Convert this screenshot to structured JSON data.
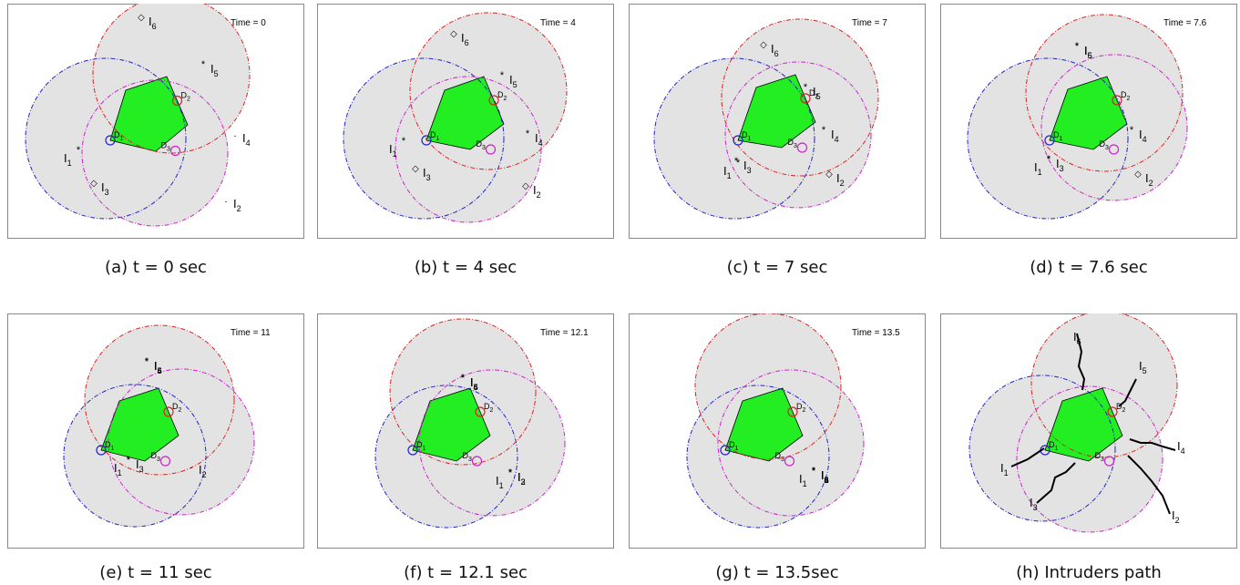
{
  "colors": {
    "drone1": "#2222cc",
    "drone2": "#dd2222",
    "drone3": "#cc22cc",
    "area_fill": "#e3e3e3",
    "target": "#22ee22",
    "path": "#000000"
  },
  "labels": {
    "time_prefix": "Time =",
    "drone_prefix": "D",
    "intruder_prefix": "I"
  },
  "panels": [
    {
      "caption": "(a) t = 0 sec",
      "time": "0",
      "drones": [
        {
          "id": "1",
          "x": 108,
          "y": 148,
          "r": 88
        },
        {
          "id": "2",
          "x": 180,
          "y": 78,
          "r": 86
        },
        {
          "id": "3",
          "x": 162,
          "y": 164,
          "r": 80
        }
      ],
      "intruders": [
        {
          "id": "1",
          "x": 78,
          "y": 164,
          "marker": "*",
          "color": "drone1"
        },
        {
          "id": "2",
          "x": 240,
          "y": 218,
          "marker": ".",
          "color": "path"
        },
        {
          "id": "3",
          "x": 95,
          "y": 200,
          "marker": "◇",
          "color": "drone3"
        },
        {
          "id": "4",
          "x": 250,
          "y": 146,
          "marker": ".",
          "color": "path"
        },
        {
          "id": "5",
          "x": 215,
          "y": 70,
          "marker": "*",
          "color": "drone2"
        },
        {
          "id": "6",
          "x": 147,
          "y": 18,
          "marker": "◇",
          "color": "drone2"
        }
      ]
    },
    {
      "caption": "(b) t = 4 sec",
      "time": "4",
      "drones": [
        {
          "id": "1",
          "x": 117,
          "y": 148,
          "r": 88
        },
        {
          "id": "2",
          "x": 188,
          "y": 96,
          "r": 86
        },
        {
          "id": "3",
          "x": 166,
          "y": 160,
          "r": 80
        }
      ],
      "intruders": [
        {
          "id": "1",
          "x": 95,
          "y": 154,
          "marker": "*",
          "color": "drone1"
        },
        {
          "id": "2",
          "x": 229,
          "y": 203,
          "marker": "◇",
          "color": "drone3"
        },
        {
          "id": "3",
          "x": 108,
          "y": 184,
          "marker": "◇",
          "color": "drone1"
        },
        {
          "id": "4",
          "x": 231,
          "y": 146,
          "marker": "*",
          "color": "drone3"
        },
        {
          "id": "5",
          "x": 203,
          "y": 82,
          "marker": "*",
          "color": "drone2"
        },
        {
          "id": "6",
          "x": 150,
          "y": 36,
          "marker": "◇",
          "color": "drone2"
        }
      ]
    },
    {
      "caption": "(c) t = 7 sec",
      "time": "7",
      "drones": [
        {
          "id": "1",
          "x": 116,
          "y": 148,
          "r": 88
        },
        {
          "id": "2",
          "x": 188,
          "y": 103,
          "r": 86
        },
        {
          "id": "3",
          "x": 186,
          "y": 144,
          "r": 80
        }
      ],
      "intruders": [
        {
          "id": "1",
          "x": 120,
          "y": 178,
          "marker": "*",
          "color": "drone1"
        },
        {
          "id": "2",
          "x": 220,
          "y": 190,
          "marker": "◇",
          "color": "drone3"
        },
        {
          "id": "3",
          "x": 118,
          "y": 176,
          "marker": "*",
          "color": "drone1"
        },
        {
          "id": "4",
          "x": 214,
          "y": 142,
          "marker": "*",
          "color": "drone3"
        },
        {
          "id": "5",
          "x": 194,
          "y": 95,
          "marker": "*",
          "color": "drone2"
        },
        {
          "id": "6",
          "x": 148,
          "y": 48,
          "marker": "◇",
          "color": "drone2"
        }
      ]
    },
    {
      "caption": "(d) t = 7.6 sec",
      "time": "7.6",
      "drones": [
        {
          "id": "1",
          "x": 118,
          "y": 148,
          "r": 88
        },
        {
          "id": "2",
          "x": 180,
          "y": 98,
          "r": 86
        },
        {
          "id": "3",
          "x": 191,
          "y": 136,
          "r": 80
        }
      ],
      "intruders": [
        {
          "id": "1",
          "x": 119,
          "y": 174,
          "marker": "*",
          "color": "drone1"
        },
        {
          "id": "2",
          "x": 217,
          "y": 190,
          "marker": "◇",
          "color": "drone3"
        },
        {
          "id": "3",
          "x": 119,
          "y": 174,
          "marker": "*",
          "color": "drone1"
        },
        {
          "id": "4",
          "x": 210,
          "y": 142,
          "marker": "*",
          "color": "drone3"
        },
        {
          "id": "5",
          "x": 150,
          "y": 50,
          "marker": "*",
          "color": "drone2"
        },
        {
          "id": "6",
          "x": 150,
          "y": 50,
          "marker": "*",
          "color": "drone2"
        }
      ]
    },
    {
      "caption": "(e) t = 11 sec",
      "time": "11",
      "drones": [
        {
          "id": "1",
          "x": 140,
          "y": 156,
          "r": 78
        },
        {
          "id": "2",
          "x": 167,
          "y": 95,
          "r": 82
        },
        {
          "id": "3",
          "x": 191,
          "y": 141,
          "r": 80
        }
      ],
      "intruders": [
        {
          "id": "1",
          "x": 133,
          "y": 164,
          "marker": "*",
          "color": "drone1"
        },
        {
          "id": "2",
          "x": 202,
          "y": 170,
          "marker": ".",
          "color": "drone3"
        },
        {
          "id": "3",
          "x": 133,
          "y": 164,
          "marker": "*",
          "color": "drone1"
        },
        {
          "id": "4",
          "x": 153,
          "y": 56,
          "marker": "*",
          "color": "drone3"
        },
        {
          "id": "5",
          "x": 153,
          "y": 56,
          "marker": "*",
          "color": "drone2"
        },
        {
          "id": "6",
          "x": 153,
          "y": 56,
          "marker": "*",
          "color": "drone2"
        }
      ]
    },
    {
      "caption": "(f) t = 12.1 sec",
      "time": "12.1",
      "drones": [
        {
          "id": "1",
          "x": 142,
          "y": 157,
          "r": 78
        },
        {
          "id": "2",
          "x": 160,
          "y": 86,
          "r": 80
        },
        {
          "id": "3",
          "x": 192,
          "y": 142,
          "r": 80
        }
      ],
      "intruders": [
        {
          "id": "1",
          "x": 212,
          "y": 178,
          "marker": "*",
          "color": "drone3"
        },
        {
          "id": "2",
          "x": 212,
          "y": 178,
          "marker": "*",
          "color": "drone3"
        },
        {
          "id": "3",
          "x": 212,
          "y": 178,
          "marker": "*",
          "color": "drone3"
        },
        {
          "id": "4",
          "x": 160,
          "y": 74,
          "marker": "*",
          "color": "drone2"
        },
        {
          "id": "5",
          "x": 160,
          "y": 74,
          "marker": "*",
          "color": "drone2"
        },
        {
          "id": "6",
          "x": 160,
          "y": 74,
          "marker": "*",
          "color": "drone2"
        }
      ]
    },
    {
      "caption": "(g) t = 13.5sec",
      "time": "13.5",
      "drones": [
        {
          "id": "1",
          "x": 142,
          "y": 157,
          "r": 78
        },
        {
          "id": "2",
          "x": 153,
          "y": 80,
          "r": 80
        },
        {
          "id": "3",
          "x": 178,
          "y": 142,
          "r": 80
        }
      ],
      "intruders": [
        {
          "id": "1",
          "x": 203,
          "y": 176,
          "marker": "*",
          "color": "drone3"
        },
        {
          "id": "2",
          "x": 203,
          "y": 176,
          "marker": "*",
          "color": "drone3"
        },
        {
          "id": "3",
          "x": 203,
          "y": 176,
          "marker": "*",
          "color": "drone3"
        },
        {
          "id": "4",
          "x": 203,
          "y": 176,
          "marker": "*",
          "color": "drone3"
        },
        {
          "id": "5",
          "x": 203,
          "y": 176,
          "marker": "*",
          "color": "drone3"
        },
        {
          "id": "6",
          "x": 203,
          "y": 176,
          "marker": "*",
          "color": "drone3"
        }
      ]
    },
    {
      "caption": "(h) Intruders path",
      "time": "",
      "drones": [
        {
          "id": "1",
          "x": 112,
          "y": 148,
          "r": 80
        },
        {
          "id": "2",
          "x": 180,
          "y": 78,
          "r": 80
        },
        {
          "id": "3",
          "x": 164,
          "y": 160,
          "r": 80
        }
      ],
      "intruders": []
    }
  ]
}
